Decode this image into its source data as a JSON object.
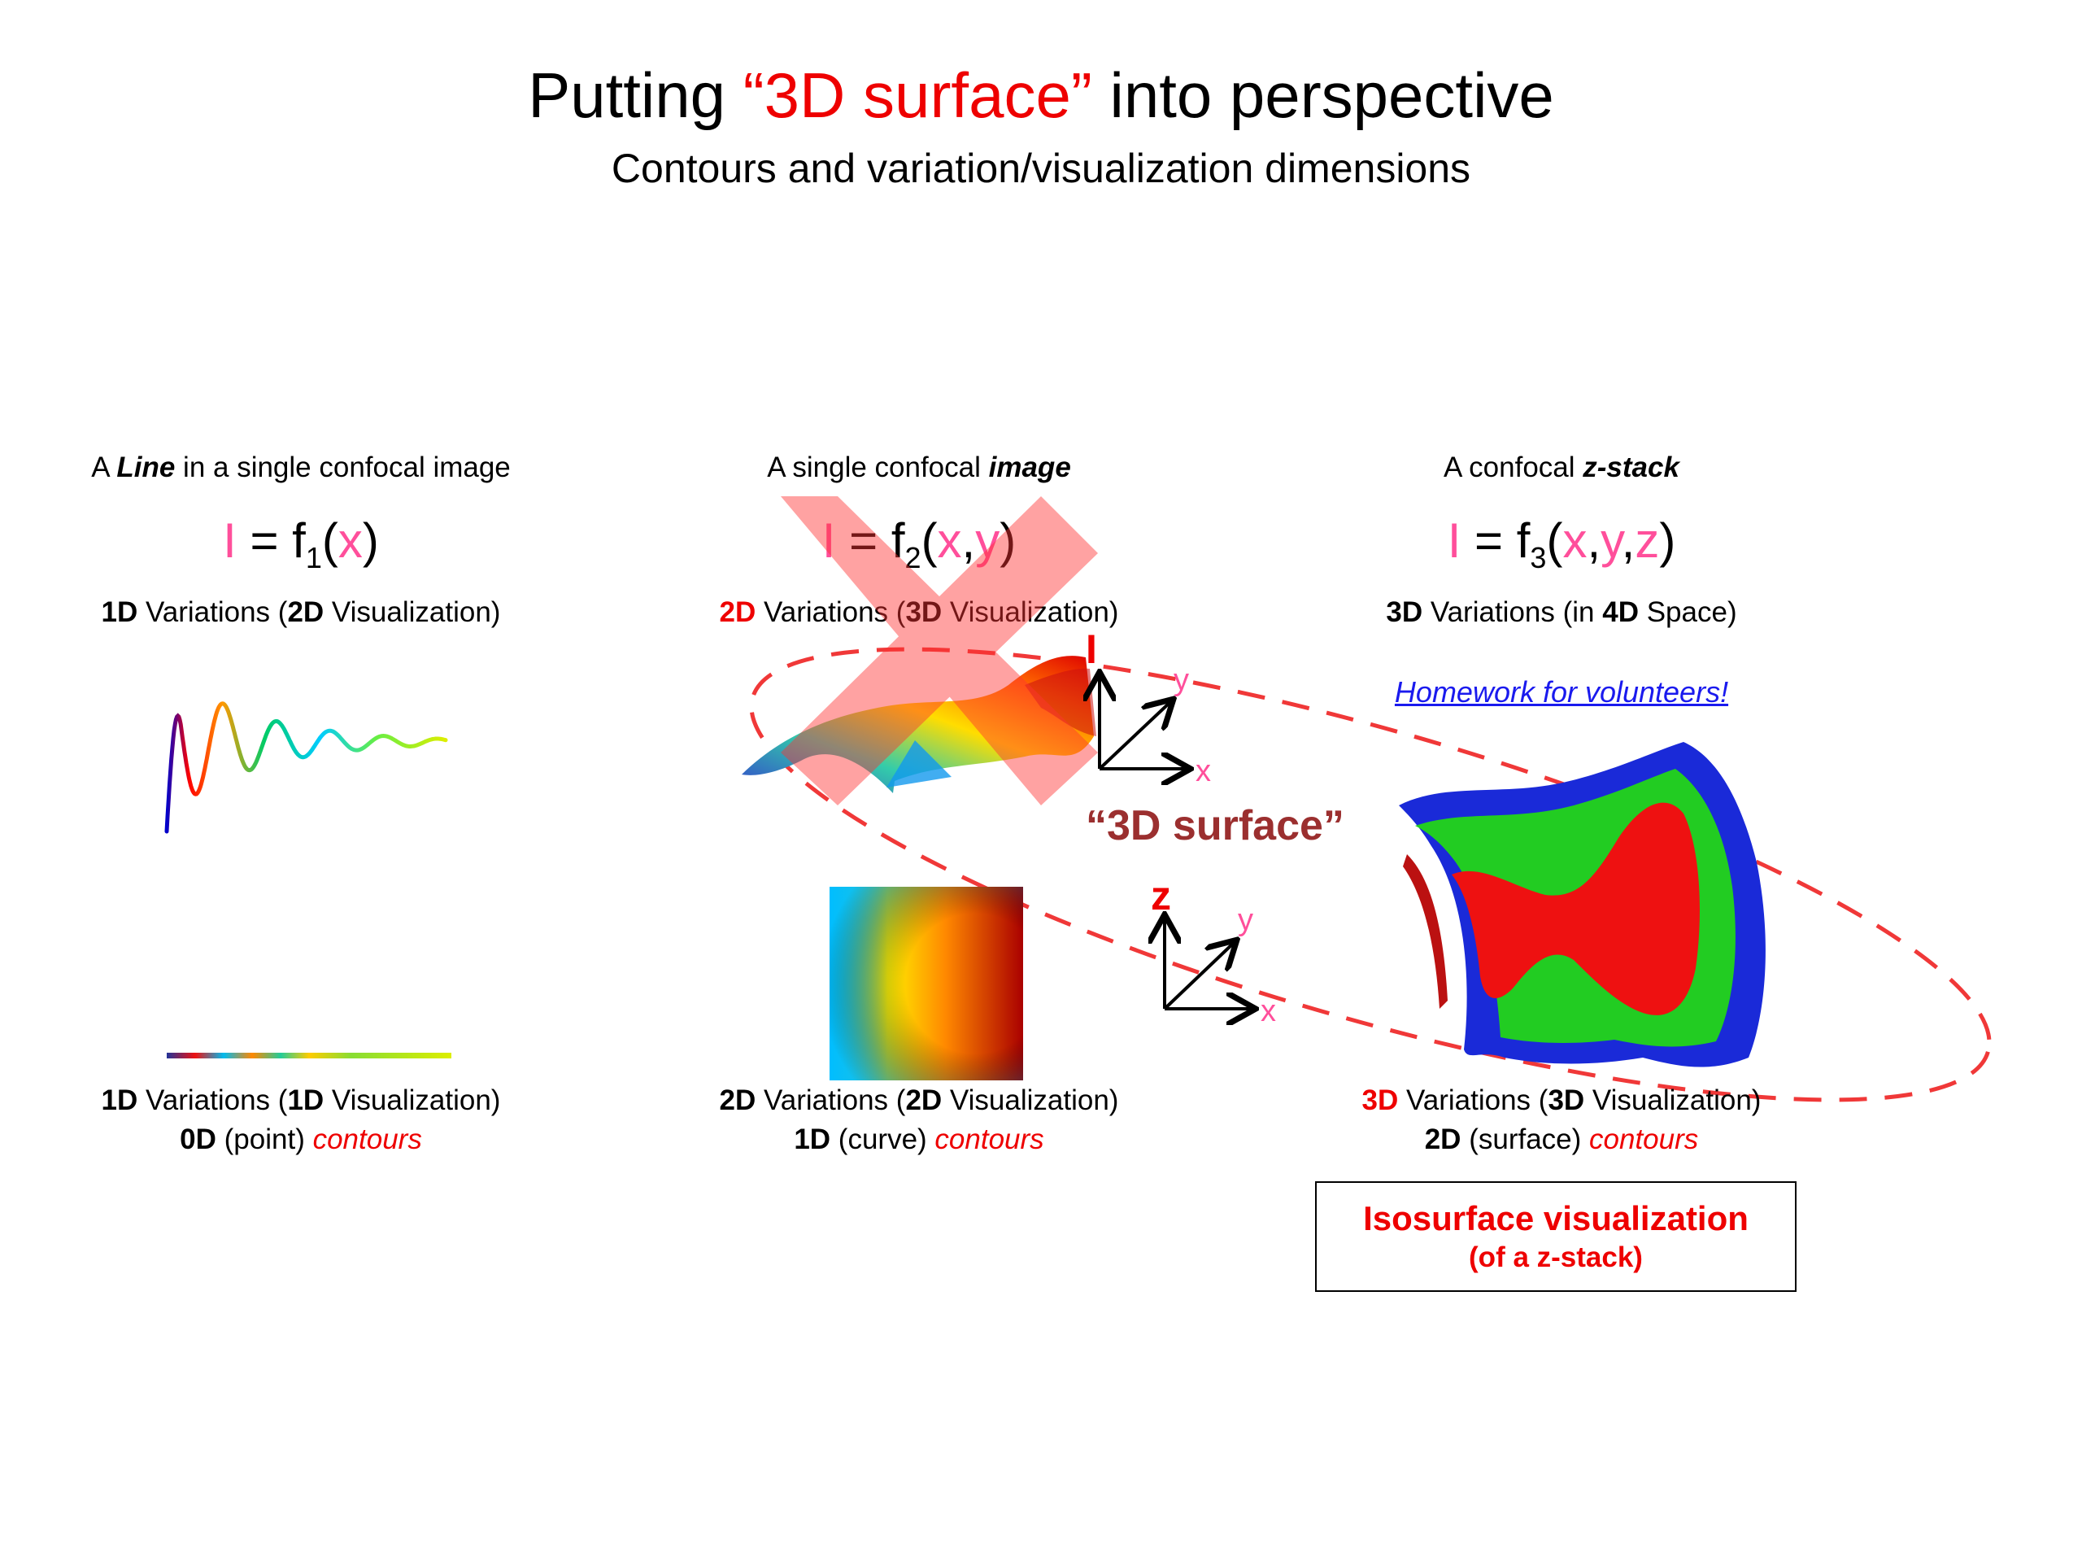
{
  "title": {
    "prefix": "Putting ",
    "highlight": "“3D surface”",
    "suffix": " into perspective"
  },
  "subtitle": "Contours and variation/visualization dimensions",
  "colors": {
    "red": "#ee0000",
    "pink": "#ff4f9b",
    "brown": "#9b2f2f",
    "link": "#1a1aee"
  },
  "columns": [
    {
      "header_pre": "A ",
      "header_em": "Line",
      "header_post": " in a single confocal image",
      "eq_I": "I",
      "eq_f": " = f",
      "eq_sub": "1",
      "eq_open": "(",
      "eq_vars": [
        "x"
      ],
      "eq_close": ")",
      "var_top": {
        "d1": "1D",
        "t1": " Variations (",
        "d2": "2D",
        "t2": " Visualization)"
      },
      "var_bottom": {
        "d1": "1D",
        "t1": " Variations (",
        "d2": "1D",
        "t2": " Visualization)"
      },
      "contour": {
        "d": "0D",
        "t": " (point) ",
        "c": "contours"
      }
    },
    {
      "header_pre": "A single confocal ",
      "header_em": "image",
      "header_post": "",
      "eq_I": "I",
      "eq_f": " = f",
      "eq_sub": "2",
      "eq_open": "(",
      "eq_vars": [
        "x",
        "y"
      ],
      "eq_close": ")",
      "var_top": {
        "d1": "2D",
        "t1": " Variations (",
        "d2": "3D",
        "t2": " Visualization)"
      },
      "var_bottom": {
        "d1": "2D",
        "t1": " Variations (",
        "d2": "2D",
        "t2": " Visualization)"
      },
      "contour": {
        "d": "1D",
        "t": " (curve) ",
        "c": "contours"
      }
    },
    {
      "header_pre": "A confocal ",
      "header_em": "z-stack",
      "header_post": "",
      "eq_I": "I",
      "eq_f": " = f",
      "eq_sub": "3",
      "eq_open": "(",
      "eq_vars": [
        "x",
        "y",
        "z"
      ],
      "eq_close": ")",
      "var_top": {
        "d1": "3D",
        "t1": " Variations (in ",
        "d2": "4D",
        "t2": " Space)"
      },
      "var_bottom": {
        "d1": "3D",
        "t1": " Variations (",
        "d2": "3D",
        "t2": " Visualization)"
      },
      "contour": {
        "d": "2D",
        "t": " (surface) ",
        "c": "contours"
      }
    }
  ],
  "comma": ",",
  "homework_link": "Homework for volunteers!",
  "surface_label": "“3D surface”",
  "axes": {
    "upper": {
      "vertical": "I",
      "diag": "y",
      "horiz": "x"
    },
    "lower": {
      "vertical": "z",
      "diag": "y",
      "horiz": "x"
    }
  },
  "isosurface": {
    "title": "Isosurface visualization",
    "subtitle": "(of a z-stack)"
  },
  "icons": [
    "cross-mark-icon",
    "axes-icon",
    "dashed-ellipse-icon"
  ]
}
